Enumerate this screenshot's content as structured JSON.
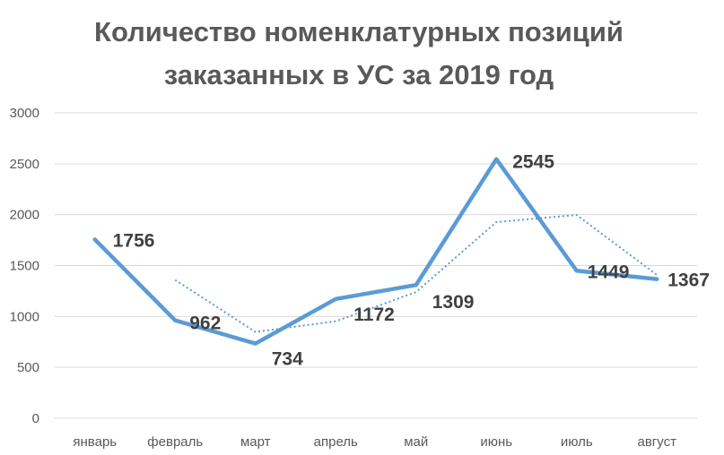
{
  "chart_data": {
    "type": "line",
    "title_lines": [
      "Количество номенклатурных позиций",
      "заказанных в УС за 2019 год"
    ],
    "categories": [
      "январь",
      "февраль",
      "март",
      "апрель",
      "май",
      "июнь",
      "июль",
      "август"
    ],
    "series": [
      {
        "values": [
          1756,
          962,
          734,
          1172,
          1309,
          2545,
          1449,
          1367
        ],
        "color": "#5b9bd5",
        "style": "solid"
      }
    ],
    "trendline": {
      "values": [
        null,
        1359,
        848,
        953,
        1240,
        1927,
        1997,
        1408
      ],
      "color": "#5b9bd5",
      "style": "dotted"
    },
    "data_labels": [
      "1756",
      "962",
      "734",
      "1172",
      "1309",
      "2545",
      "1449",
      "1367"
    ],
    "y_ticks": [
      "0",
      "500",
      "1000",
      "1500",
      "2000",
      "2500",
      "3000"
    ],
    "ylim": [
      0,
      3000
    ],
    "grid": true,
    "legend": "none"
  }
}
